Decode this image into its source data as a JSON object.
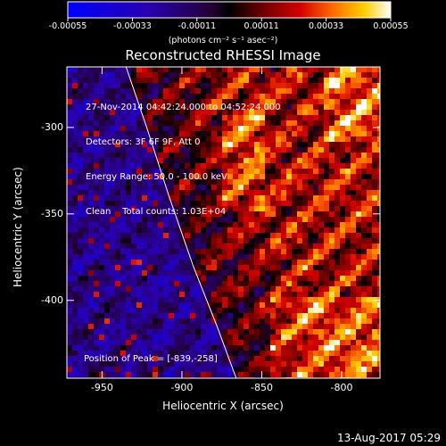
{
  "chart_data": {
    "type": "heatmap",
    "title": "Reconstructed RHESSI Image",
    "xlabel": "Heliocentric X (arcsec)",
    "ylabel": "Heliocentric Y (arcsec)",
    "xlim": [
      -972,
      -776
    ],
    "ylim": [
      -445,
      -265
    ],
    "x_ticks": [
      "-950",
      "-900",
      "-850",
      "-800"
    ],
    "x_tick_values": [
      -950,
      -900,
      -850,
      -800
    ],
    "y_ticks": [
      "-300",
      "-350",
      "-400"
    ],
    "y_tick_values": [
      -300,
      -350,
      -400
    ],
    "colorbar": {
      "ticks": [
        "-0.00055",
        "-0.00033",
        "-0.00011",
        "0.00011",
        "0.00033",
        "0.00055"
      ],
      "tick_values": [
        -0.00055,
        -0.00033,
        -0.00011,
        0.00011,
        0.00033,
        0.00055
      ],
      "range": [
        -0.00055,
        0.00055
      ],
      "unit": "(photons cm⁻² s⁻¹ asec⁻²)"
    },
    "annotations": {
      "time_range": "27-Nov-2014 04:42:24.000 to 04:52:24.000",
      "detectors": "Detectors: 3F 6F 9F, Att 0",
      "energy_range": "Energy Range: 50.0 - 100.0 keV",
      "method": "Clean    Total counts: 1.03E+04",
      "peak": "Position of Peak = [-839,-258]"
    },
    "limb_curve": [
      [
        -935,
        -265
      ],
      [
        -922,
        -300
      ],
      [
        -908,
        -340
      ],
      [
        -893,
        -380
      ],
      [
        -878,
        -415
      ],
      [
        -866,
        -445
      ]
    ]
  },
  "footer": {
    "timestamp": "13-Aug-2017 05:29"
  },
  "colors": {
    "low": "#0000ff",
    "mid": "#000000",
    "high": "#ffffff"
  }
}
